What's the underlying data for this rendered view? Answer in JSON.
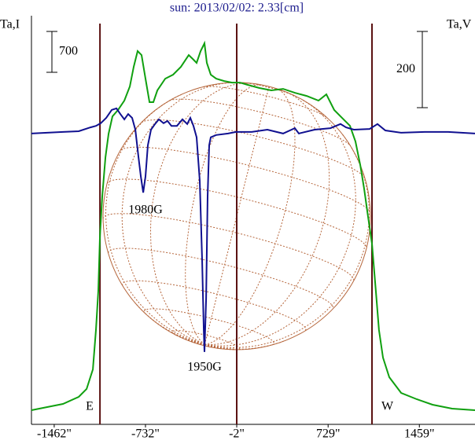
{
  "chart_data": {
    "type": "line",
    "title": "sun: 2013/02/02: 2.33[cm]",
    "ylabel": "Ta,I",
    "y2label": "Ta,V",
    "xlim": [
      -1644,
      1904
    ],
    "ylim": [
      0,
      7000
    ],
    "y2lim": [
      -767,
      305
    ],
    "xticks": [
      {
        "value": -1462,
        "label": "-1462\""
      },
      {
        "value": -732,
        "label": "-732\""
      },
      {
        "value": -2,
        "label": "-2\""
      },
      {
        "value": 729,
        "label": "729\""
      },
      {
        "value": 1459,
        "label": "1459\""
      }
    ],
    "scale_bars": [
      700,
      200
    ],
    "vlines": [
      -1096,
      -2,
      1080
    ],
    "limb_labels": [
      "E",
      "W"
    ],
    "annotations": [
      "1980G",
      "1950G"
    ],
    "series": [
      {
        "color": "#10a010",
        "axis": "y",
        "x": [
          -1644,
          -1518,
          -1392,
          -1266,
          -1203,
          -1153,
          -1128,
          -1109,
          -1096,
          -1078,
          -1052,
          -1027,
          -996,
          -952,
          -901,
          -857,
          -826,
          -795,
          -763,
          -732,
          -700,
          -669,
          -637,
          -574,
          -511,
          -449,
          -386,
          -354,
          -323,
          -291,
          -260,
          -241,
          -210,
          -166,
          -103,
          -40,
          23,
          86,
          180,
          275,
          369,
          463,
          558,
          652,
          715,
          778,
          841,
          904,
          948,
          986,
          1017,
          1048,
          1080,
          1111,
          1136,
          1168,
          1218,
          1313,
          1438,
          1564,
          1721,
          1904
        ],
        "values": [
          242,
          296,
          350,
          471,
          606,
          942,
          1615,
          2288,
          3230,
          3903,
          4576,
          4980,
          5276,
          5384,
          5546,
          5788,
          6124,
          6394,
          6326,
          5922,
          5519,
          5519,
          5721,
          5922,
          5990,
          6124,
          6326,
          6259,
          6192,
          6394,
          6528,
          6192,
          5990,
          5922,
          5882,
          5855,
          5855,
          5815,
          5761,
          5721,
          5747,
          5680,
          5626,
          5546,
          5653,
          5384,
          5249,
          5115,
          4846,
          4442,
          4038,
          3567,
          3096,
          2288,
          1615,
          1144,
          808,
          538,
          431,
          337,
          269,
          242
        ]
      },
      {
        "color": "#101090",
        "axis": "y2",
        "x": [
          -1644,
          -1518,
          -1392,
          -1266,
          -1172,
          -1128,
          -1090,
          -1046,
          -1002,
          -964,
          -933,
          -901,
          -870,
          -839,
          -813,
          -788,
          -769,
          -750,
          -732,
          -713,
          -688,
          -656,
          -625,
          -587,
          -556,
          -524,
          -480,
          -436,
          -398,
          -373,
          -348,
          -323,
          -298,
          -279,
          -266,
          -260,
          -247,
          -235,
          -222,
          -210,
          -166,
          -71,
          -8,
          118,
          243,
          369,
          463,
          495,
          621,
          747,
          828,
          872,
          935,
          1061,
          1124,
          1187,
          1313,
          1501,
          1690,
          1904
        ],
        "values": [
          -4,
          -2,
          0,
          2,
          12,
          16,
          23,
          37,
          58,
          62,
          47,
          33,
          47,
          37,
          6,
          -66,
          -117,
          -159,
          -117,
          -35,
          6,
          21,
          33,
          23,
          29,
          16,
          16,
          33,
          21,
          37,
          16,
          -14,
          -128,
          -334,
          -520,
          -577,
          -437,
          -169,
          -35,
          -14,
          -8,
          -4,
          0,
          0,
          6,
          -4,
          10,
          -4,
          6,
          10,
          21,
          12,
          6,
          8,
          21,
          4,
          -2,
          0,
          0,
          -4
        ]
      }
    ]
  }
}
